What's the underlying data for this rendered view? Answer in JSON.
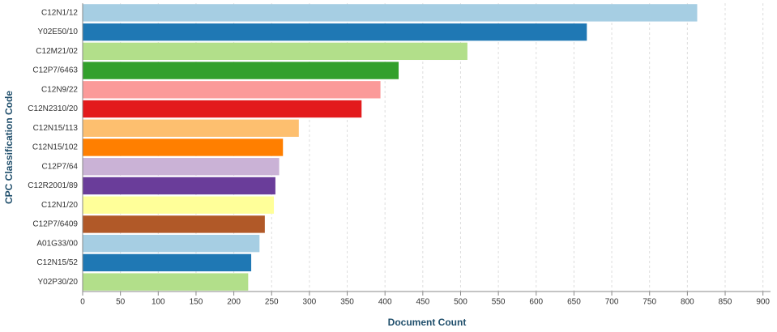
{
  "chart_data": {
    "type": "hbar",
    "x_label": "Document Count",
    "y_label": "CPC Classification Code",
    "categories": [
      "C12N1/12",
      "Y02E50/10",
      "C12M21/02",
      "C12P7/6463",
      "C12N9/22",
      "C12N2310/20",
      "C12N15/113",
      "C12N15/102",
      "C12P7/64",
      "C12R2001/89",
      "C12N1/20",
      "C12P7/6409",
      "A01G33/00",
      "C12N15/52",
      "Y02P30/20"
    ],
    "values": [
      813,
      667,
      509,
      418,
      394,
      369,
      286,
      265,
      260,
      255,
      253,
      241,
      234,
      223,
      219
    ],
    "colors": [
      "#a6cee3",
      "#1f78b4",
      "#b2df8a",
      "#33a02c",
      "#fb9a99",
      "#e31a1c",
      "#fdbf6f",
      "#ff7f00",
      "#cab2d6",
      "#6a3d9a",
      "#ffff99",
      "#b15928",
      "#a6cee3",
      "#1f78b4",
      "#b2df8a"
    ],
    "xlim": [
      0,
      910
    ],
    "xticks": [
      0,
      50,
      100,
      150,
      200,
      250,
      300,
      350,
      400,
      450,
      500,
      550,
      600,
      650,
      700,
      750,
      800,
      850,
      900
    ],
    "grid": true
  }
}
